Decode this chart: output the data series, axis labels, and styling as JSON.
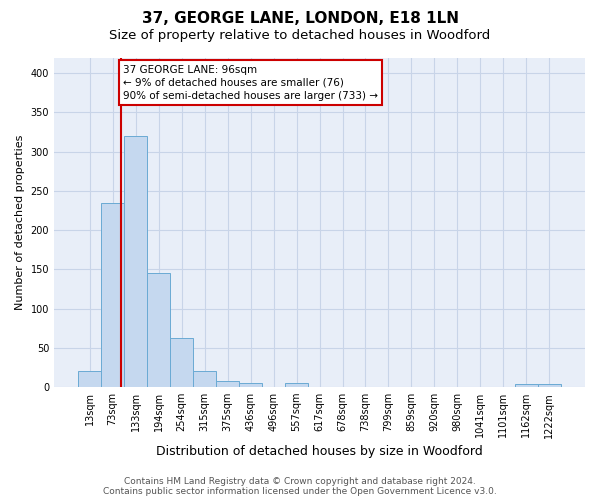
{
  "title": "37, GEORGE LANE, LONDON, E18 1LN",
  "subtitle": "Size of property relative to detached houses in Woodford",
  "xlabel": "Distribution of detached houses by size in Woodford",
  "ylabel": "Number of detached properties",
  "categories": [
    "13sqm",
    "73sqm",
    "133sqm",
    "194sqm",
    "254sqm",
    "315sqm",
    "375sqm",
    "436sqm",
    "496sqm",
    "557sqm",
    "617sqm",
    "678sqm",
    "738sqm",
    "799sqm",
    "859sqm",
    "920sqm",
    "980sqm",
    "1041sqm",
    "1101sqm",
    "1162sqm",
    "1222sqm"
  ],
  "bar_heights": [
    20,
    235,
    320,
    145,
    63,
    20,
    8,
    5,
    0,
    5,
    0,
    0,
    0,
    0,
    0,
    0,
    0,
    0,
    0,
    4,
    4
  ],
  "bar_color": "#c5d8ef",
  "bar_edge_color": "#6aaad4",
  "vline_color": "#cc0000",
  "vline_x": 1.36,
  "annotation_text": "37 GEORGE LANE: 96sqm\n← 9% of detached houses are smaller (76)\n90% of semi-detached houses are larger (733) →",
  "annotation_box_facecolor": "#ffffff",
  "annotation_box_edgecolor": "#cc0000",
  "ylim": [
    0,
    420
  ],
  "yticks": [
    0,
    50,
    100,
    150,
    200,
    250,
    300,
    350,
    400
  ],
  "plot_bg_color": "#e8eef8",
  "grid_color": "#c8d4e8",
  "footer_line1": "Contains HM Land Registry data © Crown copyright and database right 2024.",
  "footer_line2": "Contains public sector information licensed under the Open Government Licence v3.0.",
  "title_fontsize": 11,
  "subtitle_fontsize": 9.5,
  "xlabel_fontsize": 9,
  "ylabel_fontsize": 8,
  "tick_fontsize": 7,
  "footer_fontsize": 6.5
}
